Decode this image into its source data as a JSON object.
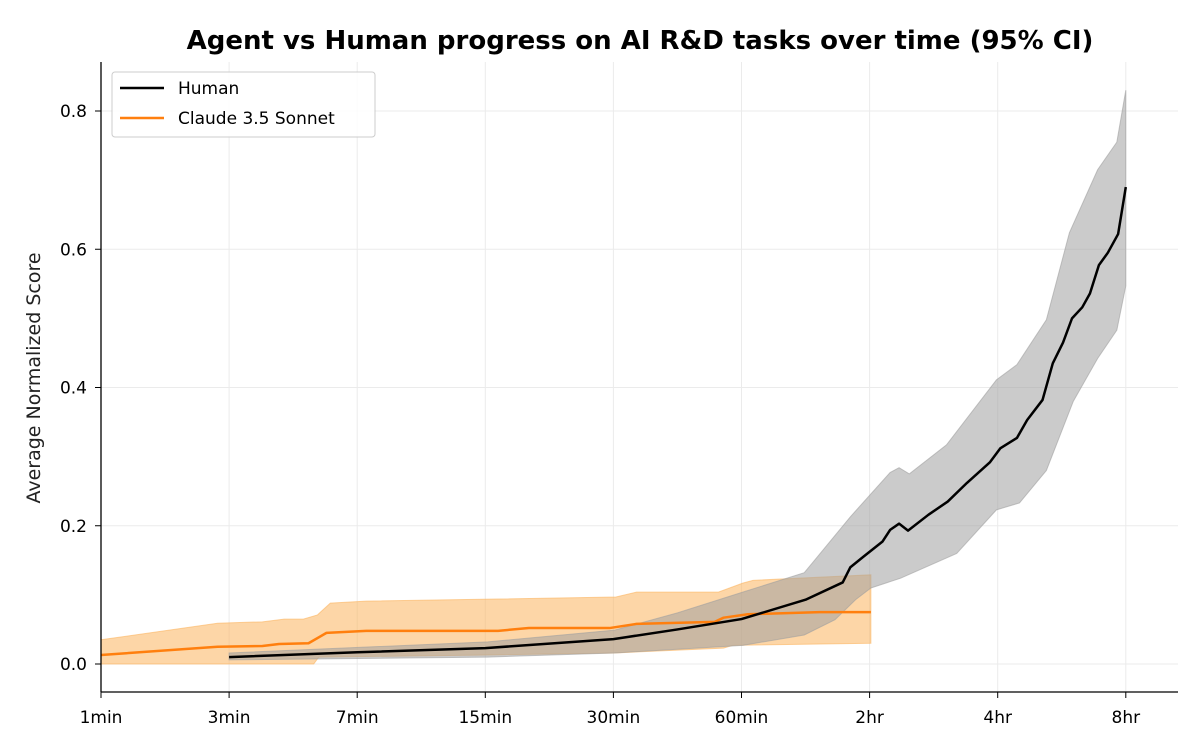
{
  "chart_data": {
    "type": "line",
    "title": "Agent vs Human progress on AI R&D tasks over time (95% CI)",
    "xlabel": "",
    "ylabel": "Average Normalized Score",
    "x_units": "tick index (0 = 1min ... 8 = 8hr)",
    "x_ticks": [
      "1min",
      "3min",
      "7min",
      "15min",
      "30min",
      "60min",
      "2hr",
      "4hr",
      "8hr"
    ],
    "y_ticks": [
      "0.0",
      "0.2",
      "0.4",
      "0.6",
      "0.8"
    ],
    "ylim": [
      -0.04,
      0.87
    ],
    "xlim": [
      0,
      8.4
    ],
    "grid": true,
    "legend_position": "top-left",
    "series": [
      {
        "name": "Human",
        "color": "#000000",
        "band_color": "#a0a0a0",
        "mean": [
          [
            1,
            0.01
          ],
          [
            2,
            0.017
          ],
          [
            3,
            0.023
          ],
          [
            4,
            0.036
          ],
          [
            4.5,
            0.05
          ],
          [
            5,
            0.065
          ],
          [
            5.5,
            0.093
          ],
          [
            5.79,
            0.118
          ],
          [
            5.85,
            0.14
          ],
          [
            5.95,
            0.155
          ],
          [
            6.1,
            0.177
          ],
          [
            6.16,
            0.194
          ],
          [
            6.23,
            0.203
          ],
          [
            6.3,
            0.193
          ],
          [
            6.46,
            0.216
          ],
          [
            6.61,
            0.235
          ],
          [
            6.76,
            0.262
          ],
          [
            6.94,
            0.292
          ],
          [
            7.02,
            0.312
          ],
          [
            7.15,
            0.327
          ],
          [
            7.23,
            0.353
          ],
          [
            7.35,
            0.382
          ],
          [
            7.43,
            0.435
          ],
          [
            7.51,
            0.465
          ],
          [
            7.58,
            0.5
          ],
          [
            7.66,
            0.516
          ],
          [
            7.72,
            0.536
          ],
          [
            7.79,
            0.577
          ],
          [
            7.86,
            0.595
          ],
          [
            7.94,
            0.622
          ],
          [
            8.0,
            0.69
          ]
        ],
        "upper": [
          [
            1,
            0.016
          ],
          [
            3.02,
            0.032
          ],
          [
            4.01,
            0.049
          ],
          [
            4.5,
            0.074
          ],
          [
            5.01,
            0.104
          ],
          [
            5.49,
            0.132
          ],
          [
            5.57,
            0.15
          ],
          [
            5.85,
            0.213
          ],
          [
            6.16,
            0.277
          ],
          [
            6.23,
            0.284
          ],
          [
            6.31,
            0.275
          ],
          [
            6.6,
            0.317
          ],
          [
            6.99,
            0.411
          ],
          [
            7.15,
            0.433
          ],
          [
            7.38,
            0.498
          ],
          [
            7.56,
            0.624
          ],
          [
            7.78,
            0.715
          ],
          [
            7.93,
            0.755
          ],
          [
            8.0,
            0.83
          ]
        ],
        "lower": [
          [
            1,
            0.006
          ],
          [
            3.02,
            0.01
          ],
          [
            4.01,
            0.016
          ],
          [
            5.01,
            0.027
          ],
          [
            5.49,
            0.042
          ],
          [
            5.73,
            0.064
          ],
          [
            5.89,
            0.093
          ],
          [
            6.01,
            0.11
          ],
          [
            6.24,
            0.124
          ],
          [
            6.68,
            0.16
          ],
          [
            6.99,
            0.223
          ],
          [
            7.17,
            0.233
          ],
          [
            7.38,
            0.28
          ],
          [
            7.59,
            0.38
          ],
          [
            7.78,
            0.442
          ],
          [
            7.93,
            0.483
          ],
          [
            8.0,
            0.547
          ]
        ]
      },
      {
        "name": "Claude 3.5 Sonnet",
        "color": "#ff7f0e",
        "band_color": "#fbb45f",
        "mean": [
          [
            0,
            0.013
          ],
          [
            0.91,
            0.025
          ],
          [
            1.26,
            0.026
          ],
          [
            1.39,
            0.029
          ],
          [
            1.62,
            0.03
          ],
          [
            1.76,
            0.045
          ],
          [
            2.07,
            0.048
          ],
          [
            3.1,
            0.048
          ],
          [
            3.34,
            0.052
          ],
          [
            3.97,
            0.052
          ],
          [
            4.18,
            0.058
          ],
          [
            4.79,
            0.061
          ],
          [
            4.86,
            0.067
          ],
          [
            5.05,
            0.072
          ],
          [
            5.61,
            0.075
          ],
          [
            6.01,
            0.075
          ]
        ],
        "upper": [
          [
            0,
            0.035
          ],
          [
            0.91,
            0.059
          ],
          [
            1.26,
            0.061
          ],
          [
            1.43,
            0.065
          ],
          [
            1.58,
            0.065
          ],
          [
            1.69,
            0.071
          ],
          [
            1.79,
            0.088
          ],
          [
            2.07,
            0.091
          ],
          [
            3.1,
            0.094
          ],
          [
            4.02,
            0.097
          ],
          [
            4.18,
            0.104
          ],
          [
            4.82,
            0.104
          ],
          [
            5.01,
            0.117
          ],
          [
            5.09,
            0.121
          ],
          [
            6.01,
            0.129
          ]
        ],
        "lower": [
          [
            0,
            0.0
          ],
          [
            1.66,
            0.0
          ],
          [
            1.7,
            0.01
          ],
          [
            3.02,
            0.013
          ],
          [
            4.01,
            0.016
          ],
          [
            4.86,
            0.023
          ],
          [
            4.93,
            0.027
          ],
          [
            6.01,
            0.03
          ]
        ]
      }
    ]
  }
}
